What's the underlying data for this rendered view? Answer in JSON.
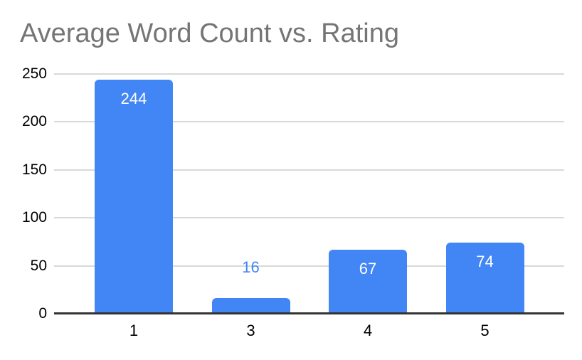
{
  "chart_data": {
    "type": "bar",
    "title": "Average Word Count vs. Rating",
    "categories": [
      "1",
      "3",
      "4",
      "5"
    ],
    "values": [
      244,
      16,
      67,
      74
    ],
    "xlabel": "",
    "ylabel": "",
    "ylim": [
      0,
      250
    ],
    "yticks": [
      0,
      50,
      100,
      150,
      200,
      250
    ],
    "grid": true,
    "legend": "none",
    "value_labels": [
      {
        "value": "244",
        "placement": "inside"
      },
      {
        "value": "16",
        "placement": "outside"
      },
      {
        "value": "67",
        "placement": "inside"
      },
      {
        "value": "74",
        "placement": "inside"
      }
    ],
    "colors": {
      "bar": "#4285f4",
      "title_text": "#757575",
      "axis_text": "#000000",
      "gridline": "#d9d9d9",
      "baseline": "#333333",
      "label_inside": "#ffffff",
      "label_outside": "#4285f4",
      "background": "#ffffff"
    }
  }
}
